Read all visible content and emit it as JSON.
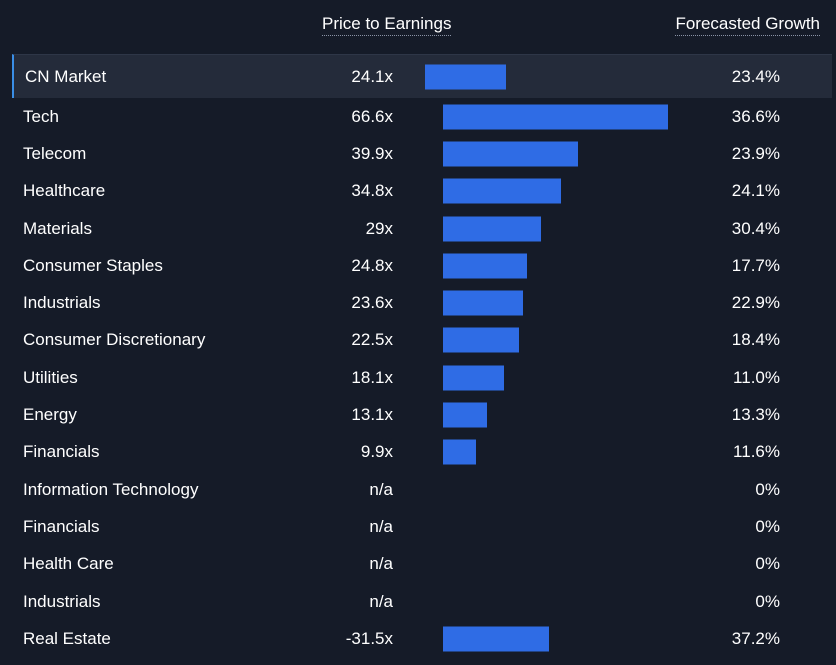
{
  "header": {
    "pe_label": "Price to Earnings",
    "growth_label": "Forecasted Growth"
  },
  "colors": {
    "bar": "#2f6ce5",
    "background": "#151b28",
    "highlight_row": "#242b3a",
    "highlight_accent": "#3a8ee6"
  },
  "chart_data": {
    "type": "bar",
    "categories": [
      "CN Market",
      "Tech",
      "Telecom",
      "Healthcare",
      "Materials",
      "Consumer Staples",
      "Industrials",
      "Consumer Discretionary",
      "Utilities",
      "Energy",
      "Financials",
      "Information Technology",
      "Financials",
      "Health Care",
      "Industrials",
      "Real Estate"
    ],
    "values": [
      24.1,
      66.6,
      39.9,
      34.8,
      29,
      24.8,
      23.6,
      22.5,
      18.1,
      13.1,
      9.9,
      null,
      null,
      null,
      null,
      -31.5
    ],
    "pe_labels": [
      "24.1x",
      "66.6x",
      "39.9x",
      "34.8x",
      "29x",
      "24.8x",
      "23.6x",
      "22.5x",
      "18.1x",
      "13.1x",
      "9.9x",
      "n/a",
      "n/a",
      "n/a",
      "n/a",
      "-31.5x"
    ],
    "growth_labels": [
      "23.4%",
      "36.6%",
      "23.9%",
      "24.1%",
      "30.4%",
      "17.7%",
      "22.9%",
      "18.4%",
      "11.0%",
      "13.3%",
      "11.6%",
      "0%",
      "0%",
      "0%",
      "0%",
      "37.2%"
    ],
    "highlighted": [
      true,
      false,
      false,
      false,
      false,
      false,
      false,
      false,
      false,
      false,
      false,
      false,
      false,
      false,
      false,
      false
    ],
    "xlabel": "Price to Earnings",
    "ylabel": ""
  }
}
